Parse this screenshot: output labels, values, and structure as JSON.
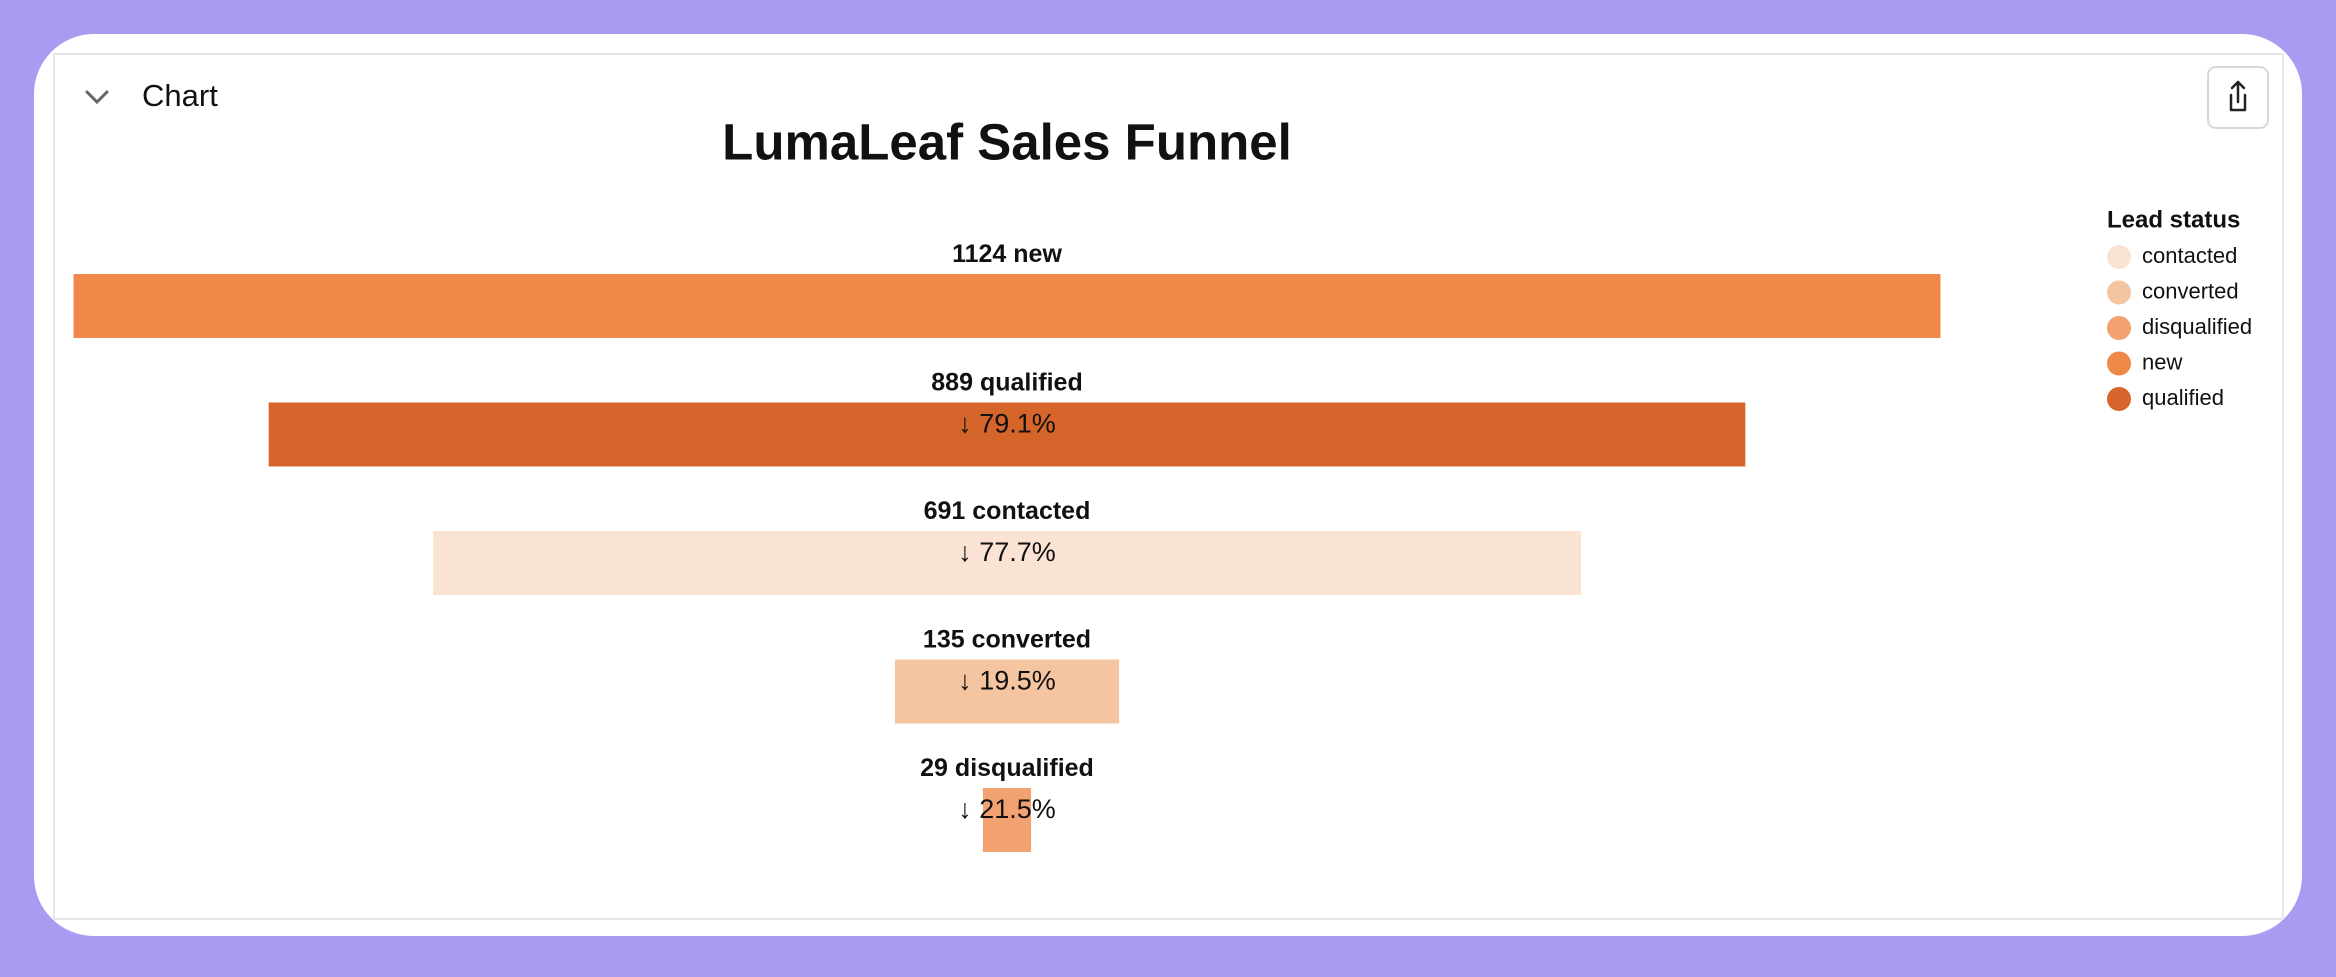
{
  "header": {
    "title": "Chart"
  },
  "chart_data": {
    "type": "funnel",
    "title": "LumaLeaf Sales Funnel",
    "categories": [
      "new",
      "qualified",
      "contacted",
      "converted",
      "disqualified"
    ],
    "values": [
      1124,
      889,
      691,
      135,
      29
    ],
    "colors": [
      "#f0884a",
      "#d5652a",
      "#fae3d3",
      "#f5c4a1",
      "#f2a270"
    ],
    "step_labels": [
      null,
      "↓ 79.1%",
      "↓ 77.7%",
      "↓ 19.5%",
      "↓ 21.5%"
    ],
    "legend": {
      "title": "Lead status",
      "items": [
        "contacted",
        "converted",
        "disqualified",
        "new",
        "qualified"
      ]
    }
  }
}
